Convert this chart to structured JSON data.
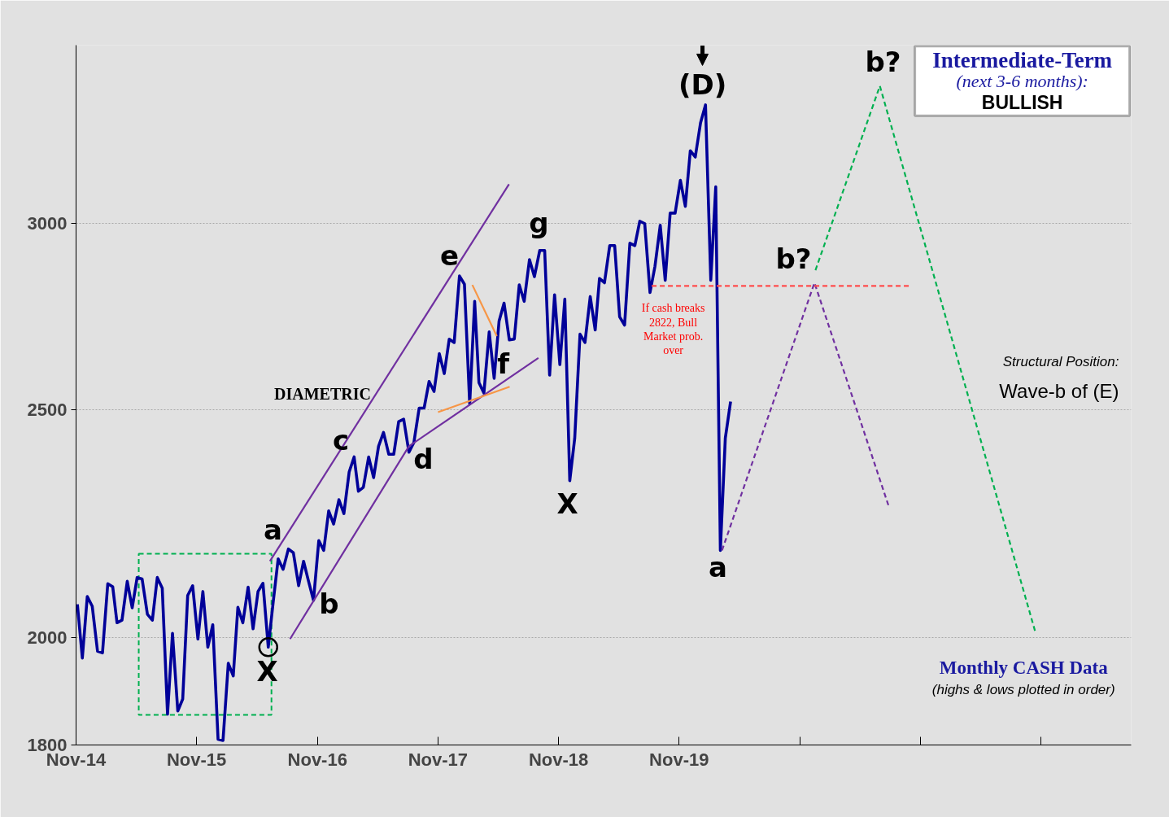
{
  "chart_data": {
    "type": "line",
    "title": "Intermediate-Term",
    "subtitle": "(next 3-6 months):",
    "log": "y",
    "grid": "y",
    "xlim": [
      "2014-11",
      "2023-08"
    ],
    "xticks": [
      {
        "value": "2014-11",
        "label": "Nov-14"
      },
      {
        "value": "2015-11",
        "label": "Nov-15"
      },
      {
        "value": "2016-11",
        "label": "Nov-16"
      },
      {
        "value": "2017-11",
        "label": "Nov-17"
      },
      {
        "value": "2018-11",
        "label": "Nov-18"
      },
      {
        "value": "2019-11",
        "label": "Nov-19"
      },
      {
        "value": "2020-11",
        "label": null
      },
      {
        "value": "2021-11",
        "label": null
      },
      {
        "value": "2022-11",
        "label": null
      }
    ],
    "ylim": [
      1800,
      3573
    ],
    "yticks": [
      1800,
      2000,
      2500,
      3000
    ],
    "series": [
      {
        "color": "#000099",
        "x": [
          "2014-11-05",
          "2014-11-20",
          "2014-12-05",
          "2014-12-20",
          "2015-01-05",
          "2015-01-20",
          "2015-02-05",
          "2015-02-20",
          "2015-03-05",
          "2015-03-20",
          "2015-04-05",
          "2015-04-20",
          "2015-05-05",
          "2015-05-20",
          "2015-06-05",
          "2015-06-20",
          "2015-07-05",
          "2015-07-20",
          "2015-08-05",
          "2015-08-20",
          "2015-09-05",
          "2015-09-20",
          "2015-10-05",
          "2015-10-20",
          "2015-11-05",
          "2015-11-20",
          "2015-12-05",
          "2015-12-20",
          "2016-01-05",
          "2016-01-20",
          "2016-02-05",
          "2016-02-20",
          "2016-03-05",
          "2016-03-20",
          "2016-04-05",
          "2016-04-20",
          "2016-05-05",
          "2016-05-20",
          "2016-06-05",
          "2016-06-20",
          "2016-07-05",
          "2016-07-20",
          "2016-08-05",
          "2016-08-20",
          "2016-09-05",
          "2016-09-20",
          "2016-10-05",
          "2016-10-20",
          "2016-11-05",
          "2016-11-20",
          "2016-12-05",
          "2016-12-20",
          "2017-01-05",
          "2017-01-20",
          "2017-02-05",
          "2017-02-20",
          "2017-03-05",
          "2017-03-20",
          "2017-04-05",
          "2017-04-20",
          "2017-05-05",
          "2017-05-20",
          "2017-06-05",
          "2017-06-20",
          "2017-07-05",
          "2017-07-20",
          "2017-08-05",
          "2017-08-20",
          "2017-09-05",
          "2017-09-20",
          "2017-10-05",
          "2017-10-20",
          "2017-11-05",
          "2017-11-20",
          "2017-12-05",
          "2017-12-20",
          "2018-01-05",
          "2018-01-20",
          "2018-02-05",
          "2018-02-20",
          "2018-03-05",
          "2018-03-20",
          "2018-04-05",
          "2018-04-20",
          "2018-05-05",
          "2018-05-20",
          "2018-06-05",
          "2018-06-20",
          "2018-07-05",
          "2018-07-20",
          "2018-08-05",
          "2018-08-20",
          "2018-09-05",
          "2018-09-20",
          "2018-10-05",
          "2018-10-20",
          "2018-11-05",
          "2018-11-20",
          "2018-12-05",
          "2018-12-20",
          "2019-01-05",
          "2019-01-20",
          "2019-02-05",
          "2019-02-20",
          "2019-03-05",
          "2019-03-20",
          "2019-04-05",
          "2019-04-20",
          "2019-05-05",
          "2019-05-20",
          "2019-06-05",
          "2019-06-20",
          "2019-07-05",
          "2019-07-20",
          "2019-08-05",
          "2019-08-20",
          "2019-09-05",
          "2019-09-20",
          "2019-10-05",
          "2019-10-20",
          "2019-11-05",
          "2019-11-20",
          "2019-12-05",
          "2019-12-20",
          "2020-01-05",
          "2020-01-20",
          "2020-02-05",
          "2020-02-20",
          "2020-03-05",
          "2020-03-20",
          "2020-04-05"
        ],
        "values": [
          2066,
          1960,
          2082,
          2062,
          1973,
          1970,
          2108,
          2102,
          2029,
          2034,
          2113,
          2059,
          2121,
          2118,
          2046,
          2034,
          2121,
          2099,
          1855,
          2008,
          1861,
          1883,
          2084,
          2104,
          1997,
          2092,
          1981,
          2025,
          1810,
          1808,
          1950,
          1926,
          2060,
          2029,
          2101,
          2017,
          2092,
          2109,
          1981,
          2071,
          2160,
          2138,
          2181,
          2173,
          2104,
          2155,
          2113,
          2074,
          2199,
          2178,
          2264,
          2235,
          2289,
          2258,
          2352,
          2387,
          2308,
          2317,
          2387,
          2339,
          2412,
          2445,
          2393,
          2393,
          2471,
          2477,
          2398,
          2421,
          2504,
          2504,
          2570,
          2545,
          2641,
          2590,
          2679,
          2670,
          2850,
          2827,
          2514,
          2780,
          2567,
          2541,
          2698,
          2578,
          2727,
          2775,
          2677,
          2679,
          2825,
          2780,
          2896,
          2848,
          2922,
          2922,
          2586,
          2798,
          2613,
          2786,
          2332,
          2431,
          2692,
          2670,
          2793,
          2703,
          2843,
          2831,
          2936,
          2936,
          2738,
          2716,
          2943,
          2936,
          3007,
          3000,
          2804,
          2877,
          2995,
          2838,
          3031,
          3031,
          3130,
          3051,
          3222,
          3202,
          3311,
          3370,
          2838,
          3110,
          2178,
          2431,
          2520
        ]
      },
      {
        "color": "#7030a0",
        "x": [
          "2016-06-10",
          "2018-06-04"
        ],
        "values": [
          2155,
          3118
        ]
      },
      {
        "color": "#7030a0",
        "x": [
          "2016-08-10",
          "2017-08-05",
          "2018-09-01"
        ],
        "values": [
          1997,
          2412,
          2630
        ]
      },
      {
        "color": "#f79646",
        "x": [
          "2018-02-13",
          "2018-04-28"
        ],
        "values": [
          2825,
          2687
        ]
      },
      {
        "color": "#f79646",
        "x": [
          "2017-11-01",
          "2018-06-06"
        ],
        "values": [
          2494,
          2557
        ]
      },
      {
        "color": "#7030a0",
        "line_style": "dashed",
        "x": [
          "2020-03-10",
          "2020-12-15",
          "2021-07-28"
        ],
        "values": [
          2178,
          2831,
          2274
        ]
      },
      {
        "color": "#00b050",
        "line_style": "dashed",
        "x": [
          "2020-12-18",
          "2021-07-01",
          "2022-10-15"
        ],
        "values": [
          2866,
          3433,
          2010
        ]
      },
      {
        "color": "#ff4d4d",
        "line_style": "dashed",
        "x": [
          "2019-08-10",
          "2021-10-03"
        ],
        "values": [
          2822,
          2822
        ]
      },
      {
        "type": "scatter",
        "marker": "circle",
        "color": "#000000",
        "x": [
          "2016-06-05"
        ],
        "values": [
          1981
        ]
      }
    ],
    "annotations": [
      "DIAMETRIC",
      "If cash breaks 2822, Bull Market prob. over",
      "Structural Position:",
      "Wave-b of (E)",
      "Monthly CASH Data",
      "(highs & lows plotted in order)",
      "BULLISH",
      "a",
      "X",
      "b",
      "c",
      "d",
      "e",
      "f",
      "g",
      "X",
      "(D)",
      "a",
      "b?",
      "b?"
    ]
  }
}
